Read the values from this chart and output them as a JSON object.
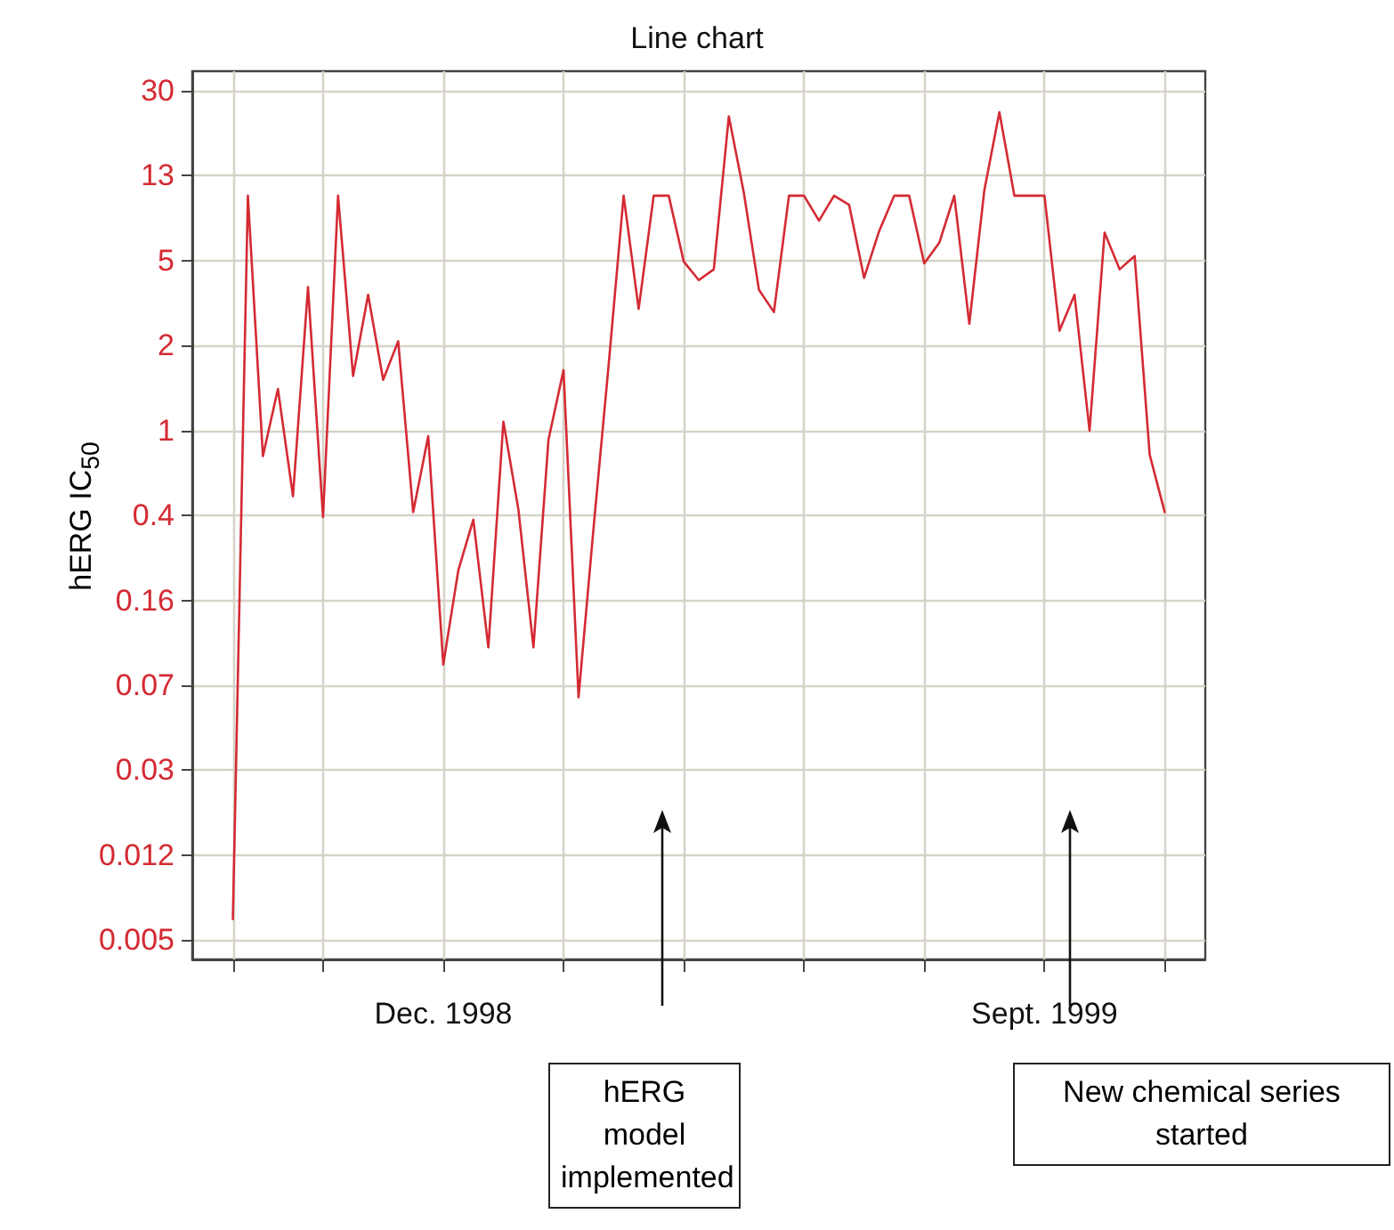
{
  "chart_data": {
    "type": "line",
    "title": "Line chart",
    "ylabel": "hERG IC$_{50}$",
    "categories": [
      null,
      null,
      null,
      null,
      null,
      null,
      null,
      null,
      null,
      null,
      null,
      null,
      null,
      null,
      "Dec. 1998",
      null,
      null,
      null,
      null,
      null,
      null,
      null,
      null,
      null,
      null,
      null,
      null,
      null,
      null,
      null,
      null,
      null,
      null,
      null,
      null,
      null,
      null,
      null,
      null,
      null,
      null,
      null,
      null,
      null,
      null,
      null,
      null,
      null,
      null,
      null,
      null,
      null,
      null,
      null,
      "Sept. 1999",
      null,
      null,
      null,
      null,
      null,
      null,
      null,
      null
    ],
    "series": [
      {
        "color": "#d42a33",
        "values": [
          0.0062,
          10.2,
          0.71,
          1.41,
          0.47,
          4.0,
          0.38,
          10.2,
          1.61,
          3.7,
          1.55,
          2.3,
          0.4,
          0.87,
          0.084,
          0.22,
          0.37,
          0.1,
          1.01,
          0.41,
          0.1,
          0.84,
          1.71,
          0.06,
          0.34,
          1.8,
          10.2,
          3.2,
          10.2,
          10.2,
          5.2,
          4.3,
          4.8,
          23,
          10.5,
          3.9,
          3.1,
          10.2,
          10.2,
          7.9,
          10.2,
          9.3,
          4.4,
          7.1,
          10.2,
          10.2,
          5.1,
          6.3,
          10.2,
          2.75,
          10.8,
          24,
          10.2,
          10.2,
          10.2,
          2.56,
          3.7,
          0.92,
          7.0,
          4.8,
          5.5,
          0.72,
          0.4
        ]
      }
    ],
    "log": "y",
    "grid": true,
    "marker": "none",
    "ylim": [
      0.0041,
      36.5
    ],
    "yticks": [
      {
        "value": 0.005,
        "label": "0.005"
      },
      {
        "value": 0.0119,
        "label": "0.012"
      },
      {
        "value": 0.0285,
        "label": "0.03"
      },
      {
        "value": 0.0679,
        "label": "0.07"
      },
      {
        "value": 0.162,
        "label": "0.16"
      },
      {
        "value": 0.387,
        "label": "0.4"
      },
      {
        "value": 0.923,
        "label": "1"
      },
      {
        "value": 2.2,
        "label": "2"
      },
      {
        "value": 5.26,
        "label": "5"
      },
      {
        "value": 12.55,
        "label": "13"
      },
      {
        "value": 29.95,
        "label": "30"
      }
    ],
    "annotations": [
      "hERG model implemented",
      "New chemical series started"
    ]
  }
}
